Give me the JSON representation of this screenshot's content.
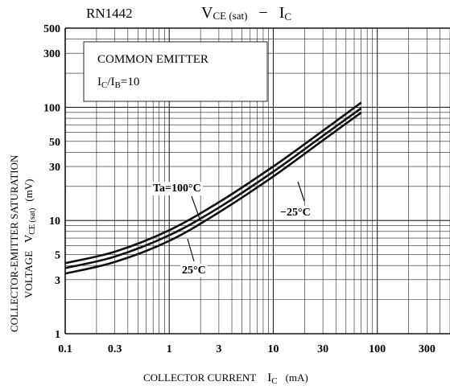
{
  "header": {
    "part_number": "RN1442",
    "title_main": "V",
    "title_main_sub": "CE (sat)",
    "title_dash": "−",
    "title_x": "I",
    "title_x_sub": "C"
  },
  "chart_data": {
    "type": "line",
    "x_scale": "log",
    "y_scale": "log",
    "xlim": [
      0.1,
      500
    ],
    "ylim": [
      1,
      500
    ],
    "x_ticks": [
      {
        "value": 0.1,
        "label": "0.1"
      },
      {
        "value": 0.3,
        "label": "0.3"
      },
      {
        "value": 1,
        "label": "1"
      },
      {
        "value": 3,
        "label": "3"
      },
      {
        "value": 10,
        "label": "10"
      },
      {
        "value": 30,
        "label": "30"
      },
      {
        "value": 100,
        "label": "100"
      },
      {
        "value": 300,
        "label": "300"
      }
    ],
    "y_ticks": [
      {
        "value": 1,
        "label": "1"
      },
      {
        "value": 3,
        "label": "3"
      },
      {
        "value": 5,
        "label": "5"
      },
      {
        "value": 10,
        "label": "10"
      },
      {
        "value": 30,
        "label": "30"
      },
      {
        "value": 50,
        "label": "50"
      },
      {
        "value": 100,
        "label": "100"
      },
      {
        "value": 300,
        "label": "300"
      },
      {
        "value": 500,
        "label": "500"
      }
    ],
    "xlabel": {
      "text": "COLLECTOR CURRENT",
      "symbol": "I",
      "symbol_sub": "C",
      "unit": "(mA)"
    },
    "ylabel": {
      "line1": "COLLECTOR-EMITTER SATURATION",
      "line2_text": "VOLTAGE",
      "line2_symbol": "V",
      "line2_symbol_sub": "CE (sat)",
      "line2_unit": "(mV)"
    },
    "conditions": {
      "line1": "COMMON EMITTER",
      "ratio_left": "I",
      "ratio_left_sub": "C",
      "ratio_mid": "/I",
      "ratio_right_sub": "B",
      "ratio_value": "=10"
    },
    "grid": true,
    "series": [
      {
        "name": "Ta=100°C",
        "x": [
          0.1,
          0.3,
          1,
          3,
          10,
          30,
          70
        ],
        "y": [
          4.2,
          5.3,
          8.2,
          14.5,
          30,
          62,
          110
        ]
      },
      {
        "name": "25°C",
        "x": [
          0.1,
          0.3,
          1,
          3,
          10,
          30,
          70
        ],
        "y": [
          3.8,
          4.8,
          7.4,
          13,
          27,
          56,
          98
        ]
      },
      {
        "name": "−25°C",
        "x": [
          0.1,
          0.3,
          1,
          3,
          10,
          30,
          70
        ],
        "y": [
          3.4,
          4.3,
          6.6,
          11.8,
          24.5,
          51,
          90
        ]
      }
    ]
  }
}
